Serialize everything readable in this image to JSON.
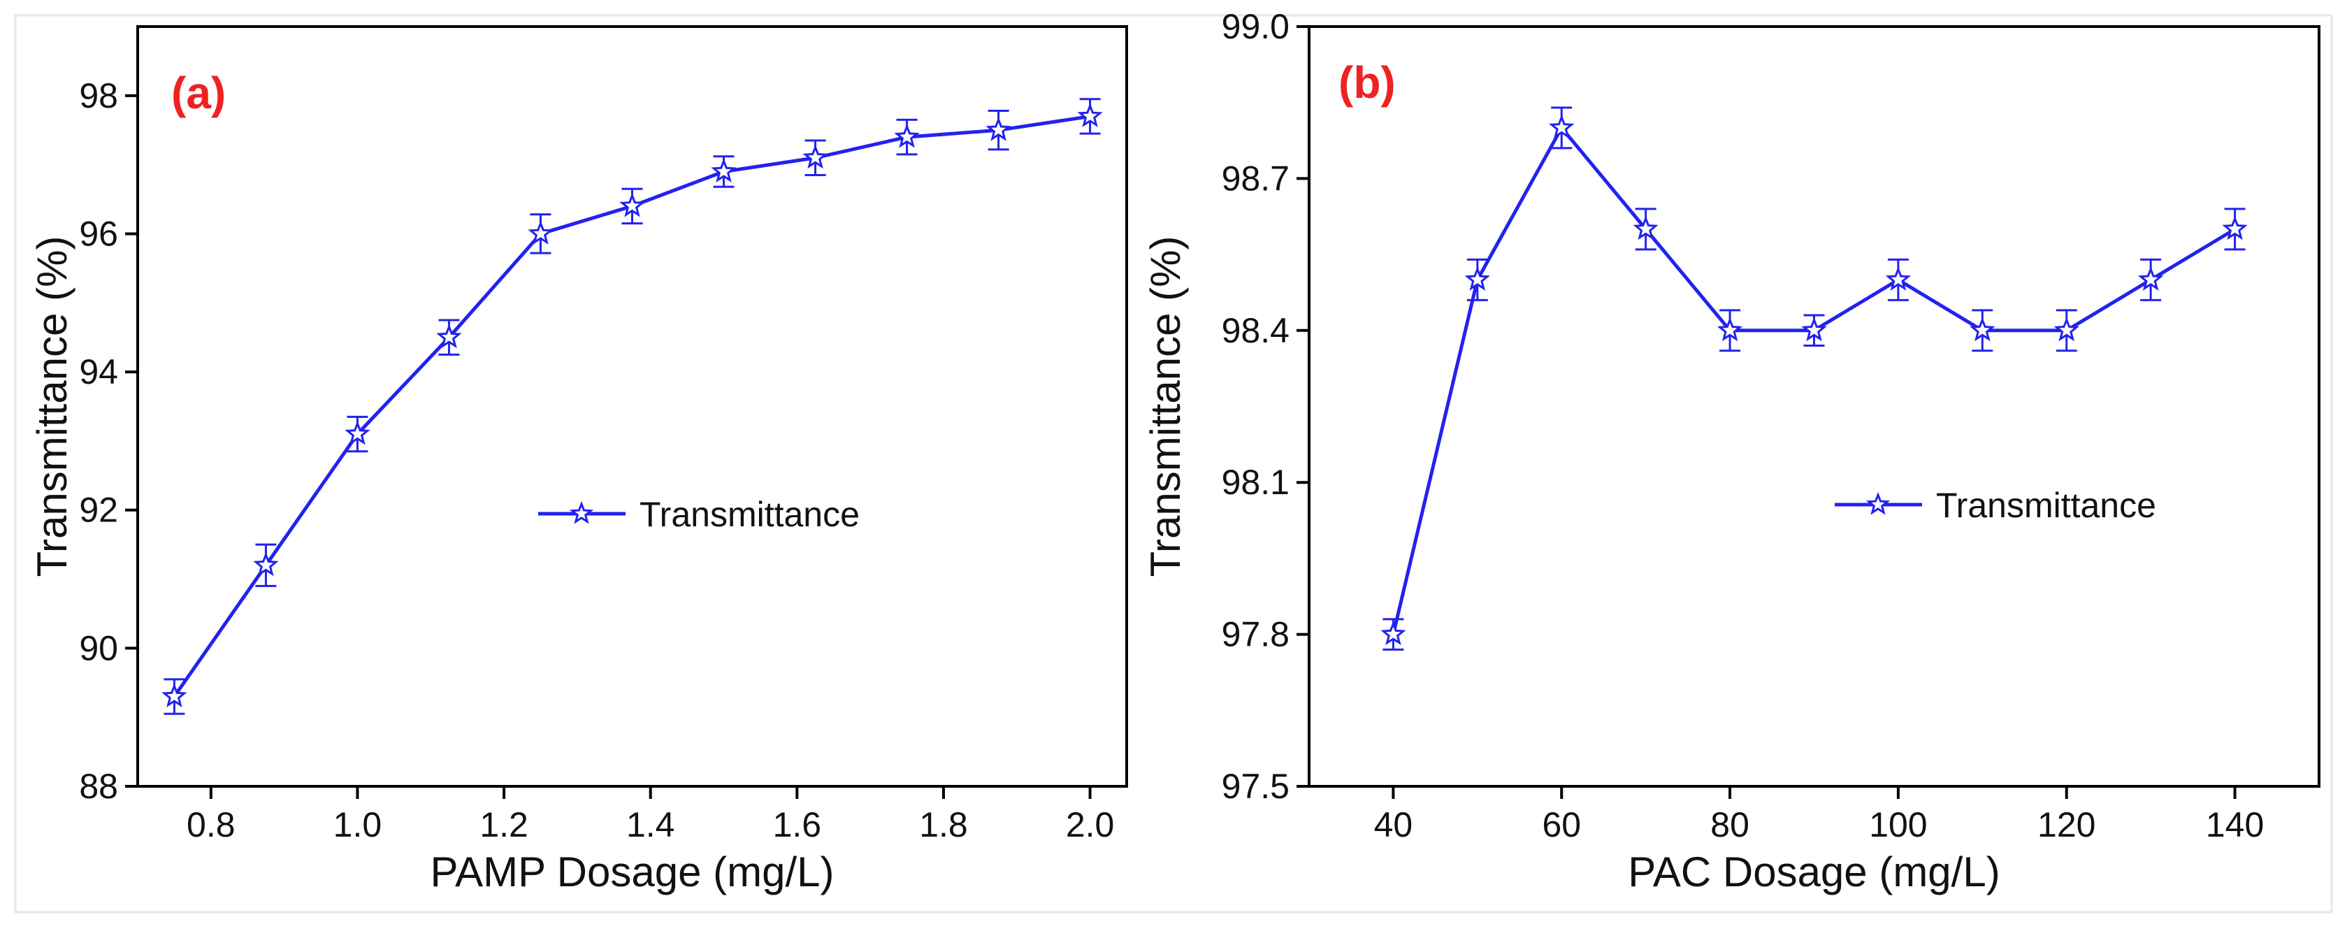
{
  "figure": {
    "colors": {
      "series": "#2222ee",
      "panel_label": "#ee2222",
      "axis": "#000000"
    }
  },
  "chart_data": [
    {
      "type": "line",
      "panel_label": "(a)",
      "title": "",
      "xlabel": "PAMP Dosage (mg/L)",
      "ylabel": "Transmittance (%)",
      "xlim": [
        0.7,
        2.05
      ],
      "ylim": [
        88,
        99
      ],
      "xticks": [
        0.8,
        1.0,
        1.2,
        1.4,
        1.6,
        1.8,
        2.0
      ],
      "xtick_labels": [
        "0.8",
        "1.0",
        "1.2",
        "1.4",
        "1.6",
        "1.8",
        "2.0"
      ],
      "yticks": [
        88,
        90,
        92,
        94,
        96,
        98
      ],
      "ytick_labels": [
        "88",
        "90",
        "92",
        "94",
        "96",
        "98"
      ],
      "legend": {
        "label": "Transmittance",
        "placement": "center"
      },
      "marker": "star",
      "series": [
        {
          "name": "Transmittance",
          "x": [
            0.75,
            0.875,
            1.0,
            1.125,
            1.25,
            1.375,
            1.5,
            1.625,
            1.75,
            1.875,
            2.0
          ],
          "values": [
            89.3,
            91.2,
            93.1,
            94.5,
            96.0,
            96.4,
            96.9,
            97.1,
            97.4,
            97.5,
            97.7
          ],
          "errors": [
            0.25,
            0.3,
            0.25,
            0.25,
            0.28,
            0.25,
            0.22,
            0.25,
            0.25,
            0.28,
            0.25
          ]
        }
      ]
    },
    {
      "type": "line",
      "panel_label": "(b)",
      "title": "",
      "xlabel": "PAC Dosage (mg/L)",
      "ylabel": "Transmittance (%)",
      "xlim": [
        30,
        150
      ],
      "ylim": [
        97.5,
        99.0
      ],
      "xticks": [
        40,
        60,
        80,
        100,
        120,
        140
      ],
      "xtick_labels": [
        "40",
        "60",
        "80",
        "100",
        "120",
        "140"
      ],
      "yticks": [
        97.5,
        97.8,
        98.1,
        98.4,
        98.7,
        99.0
      ],
      "ytick_labels": [
        "97.5",
        "97.8",
        "98.1",
        "98.4",
        "98.7",
        "99.0"
      ],
      "legend": {
        "label": "Transmittance",
        "placement": "center-right"
      },
      "marker": "star",
      "series": [
        {
          "name": "Transmittance",
          "x": [
            40,
            50,
            60,
            70,
            80,
            90,
            100,
            110,
            120,
            130,
            140
          ],
          "values": [
            97.8,
            98.5,
            98.8,
            98.6,
            98.4,
            98.4,
            98.5,
            98.4,
            98.4,
            98.5,
            98.6
          ],
          "errors": [
            0.03,
            0.04,
            0.04,
            0.04,
            0.04,
            0.03,
            0.04,
            0.04,
            0.04,
            0.04,
            0.04
          ]
        }
      ]
    }
  ]
}
